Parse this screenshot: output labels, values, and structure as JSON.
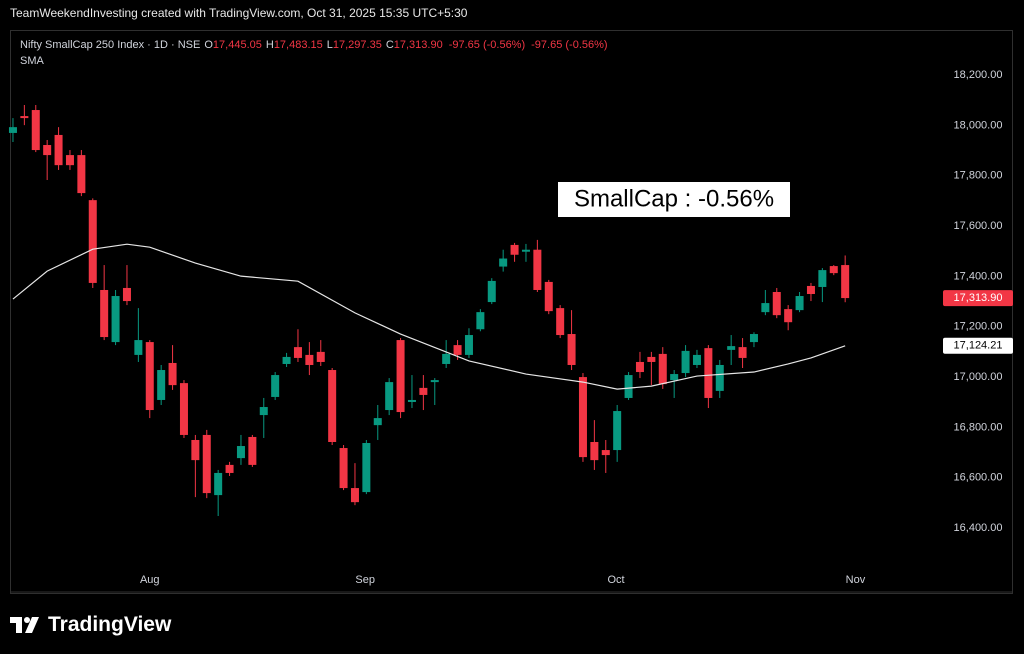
{
  "header": {
    "text": "TeamWeekendInvesting created with TradingView.com, Oct 31, 2025 15:35 UTC+5:30"
  },
  "legend": {
    "symbol": "Nifty SmallCap 250 Index · 1D · NSE",
    "items": [
      {
        "key": "O",
        "value": "17,445.05"
      },
      {
        "key": "H",
        "value": "17,483.15"
      },
      {
        "key": "L",
        "value": "17,297.35"
      },
      {
        "key": "C",
        "value": "17,313.90"
      }
    ],
    "changes": [
      "-97.65 (-0.56%)",
      "-97.65 (-0.56%)"
    ]
  },
  "footer": {
    "brand": "TradingView"
  },
  "chart_data": {
    "type": "candlestick",
    "up_color": "#089981",
    "down_color": "#f23645",
    "open": [
      17970,
      18037,
      18061,
      17922,
      17962,
      17882,
      17882,
      17703,
      17346,
      17139,
      17354,
      17088,
      17139,
      16909,
      17056,
      16976,
      16750,
      16770,
      16531,
      16651,
      16678,
      16762,
      16849,
      16921,
      17052,
      17119,
      17088,
      17100,
      17028,
      16718,
      16559,
      16543,
      16809,
      16869,
      17147,
      16901,
      16957,
      16980,
      17052,
      17127,
      17088,
      17190,
      17298,
      17439,
      17525,
      17498,
      17506,
      17378,
      17274,
      17171,
      17000,
      16742,
      16710,
      16710,
      16917,
      17060,
      17080,
      17092,
      16988,
      17016,
      17048,
      17115,
      16945,
      17108,
      17119,
      17139,
      17258,
      17338,
      17270,
      17266,
      17362,
      17358,
      17441,
      17445.05
    ],
    "high": [
      18029,
      18081,
      18081,
      17942,
      17993,
      17902,
      17902,
      17710,
      17445,
      17346,
      17445,
      17274,
      17147,
      17048,
      17127,
      16988,
      16770,
      16790,
      16631,
      16663,
      16770,
      16770,
      16917,
      17020,
      17096,
      17190,
      17139,
      17147,
      17036,
      16730,
      16658,
      16750,
      16889,
      16996,
      17155,
      17008,
      17008,
      16996,
      17147,
      17147,
      17194,
      17270,
      17393,
      17506,
      17533,
      17529,
      17545,
      17386,
      17286,
      17266,
      17016,
      16829,
      16750,
      16889,
      17020,
      17100,
      17100,
      17119,
      17028,
      17127,
      17108,
      17127,
      17068,
      17167,
      17155,
      17178,
      17346,
      17354,
      17286,
      17338,
      17374,
      17433,
      17445,
      17483.15
    ],
    "low": [
      17934,
      18001,
      17894,
      17783,
      17823,
      17823,
      17719,
      17354,
      17147,
      17127,
      17286,
      17060,
      16837,
      16889,
      16949,
      16758,
      16523,
      16519,
      16448,
      16607,
      16651,
      16643,
      16758,
      16909,
      17040,
      17060,
      17008,
      17044,
      16730,
      16551,
      16491,
      16535,
      16750,
      16849,
      16837,
      16877,
      16869,
      16889,
      17036,
      17068,
      17076,
      17182,
      17290,
      17419,
      17458,
      17458,
      17338,
      17250,
      17155,
      17028,
      16663,
      16631,
      16619,
      16663,
      16909,
      16996,
      16968,
      16953,
      16917,
      17000,
      17036,
      16877,
      16917,
      17048,
      17036,
      17119,
      17246,
      17234,
      17186,
      17258,
      17302,
      17298,
      17405,
      17297.35
    ],
    "close": [
      17993,
      18029,
      17902,
      17882,
      17842,
      17842,
      17731,
      17374,
      17159,
      17322,
      17302,
      17147,
      16869,
      17028,
      16968,
      16770,
      16670,
      16539,
      16619,
      16619,
      16726,
      16651,
      16881,
      17008,
      17080,
      17076,
      17048,
      17060,
      16742,
      16559,
      16503,
      16738,
      16837,
      16980,
      16861,
      16909,
      16929,
      16988,
      17092,
      17088,
      17167,
      17258,
      17382,
      17471,
      17486,
      17506,
      17346,
      17262,
      17167,
      17048,
      16682,
      16670,
      16690,
      16865,
      17008,
      17020,
      17060,
      16972,
      17012,
      17104,
      17088,
      16917,
      17048,
      17123,
      17076,
      17171,
      17294,
      17246,
      17218,
      17322,
      17330,
      17425,
      17413,
      17313.9
    ],
    "close_label": "17,313.90",
    "sma": {
      "name": "SMA",
      "color": "#e6e6e6",
      "x": [
        0,
        3,
        7,
        10,
        12,
        16,
        20,
        25,
        30,
        34,
        40,
        45,
        50,
        53,
        56,
        60,
        65,
        68,
        70,
        73
      ],
      "values": [
        17310,
        17421,
        17508,
        17528,
        17516,
        17453,
        17401,
        17381,
        17255,
        17171,
        17064,
        17012,
        16980,
        16952,
        16964,
        17004,
        17020,
        17052,
        17076,
        17124.21
      ],
      "last_label": "17,124.21"
    },
    "annotation": "SmallCap : -0.56%",
    "xlim": [
      -0.26,
      80.88
    ],
    "xticks": [
      {
        "value": 12,
        "label": "Aug"
      },
      {
        "value": 30.9,
        "label": "Sep"
      },
      {
        "value": 52.9,
        "label": "Oct"
      },
      {
        "value": 73.9,
        "label": "Nov"
      }
    ],
    "ylim": [
      16146,
      18379
    ],
    "yticks": [
      {
        "value": 16400,
        "label": "16,400.00"
      },
      {
        "value": 16600,
        "label": "16,600.00"
      },
      {
        "value": 16800,
        "label": "16,800.00"
      },
      {
        "value": 17000,
        "label": "17,000.00"
      },
      {
        "value": 17200,
        "label": "17,200.00"
      },
      {
        "value": 17400,
        "label": "17,400.00"
      },
      {
        "value": 17600,
        "label": "17,600.00"
      },
      {
        "value": 17800,
        "label": "17,800.00"
      },
      {
        "value": 18000,
        "label": "18,000.00"
      },
      {
        "value": 18200,
        "label": "18,200.00"
      }
    ],
    "grid": false
  }
}
